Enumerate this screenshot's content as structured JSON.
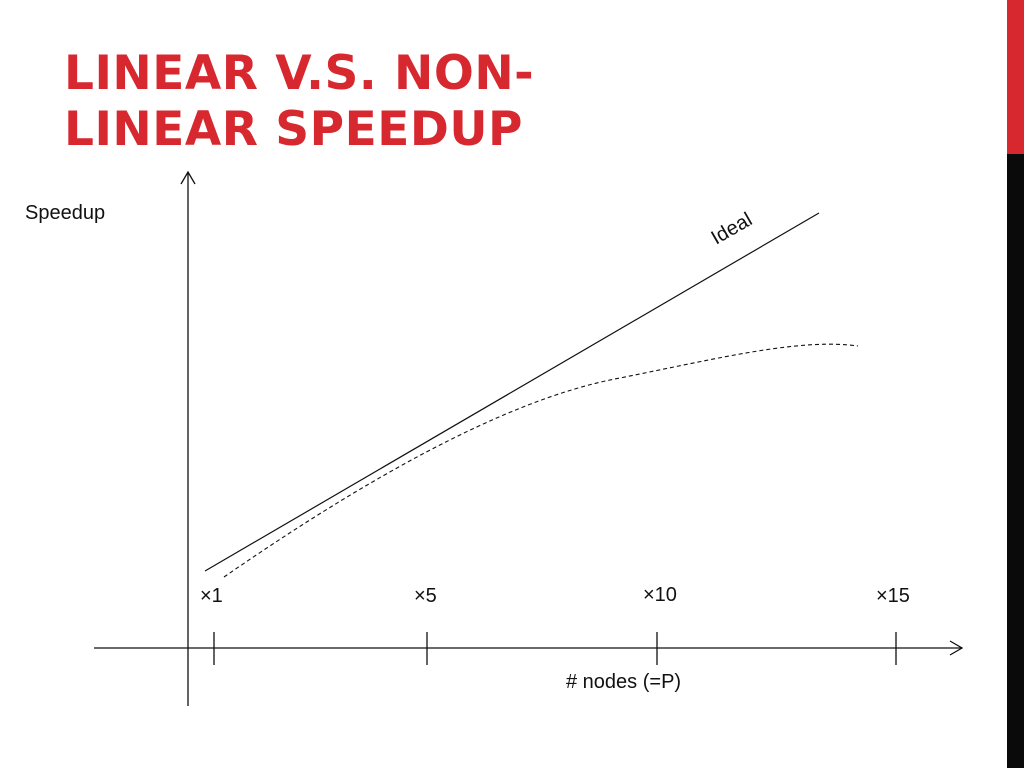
{
  "slide": {
    "title_line1": "LINEAR V.S. NON-",
    "title_line2": "LINEAR SPEEDUP",
    "title_color": "#d7282f",
    "accent_color": "#d7282f",
    "bar_color": "#0a0a0a"
  },
  "diagram": {
    "y_axis_label": "Speedup",
    "x_axis_label": "# nodes (=P)",
    "ideal_label": "Ideal",
    "ticks": [
      "×1",
      "×5",
      "×10",
      "×15"
    ],
    "curves": [
      {
        "kind": "ideal",
        "style": "solid"
      },
      {
        "kind": "actual",
        "style": "dashed"
      }
    ]
  }
}
